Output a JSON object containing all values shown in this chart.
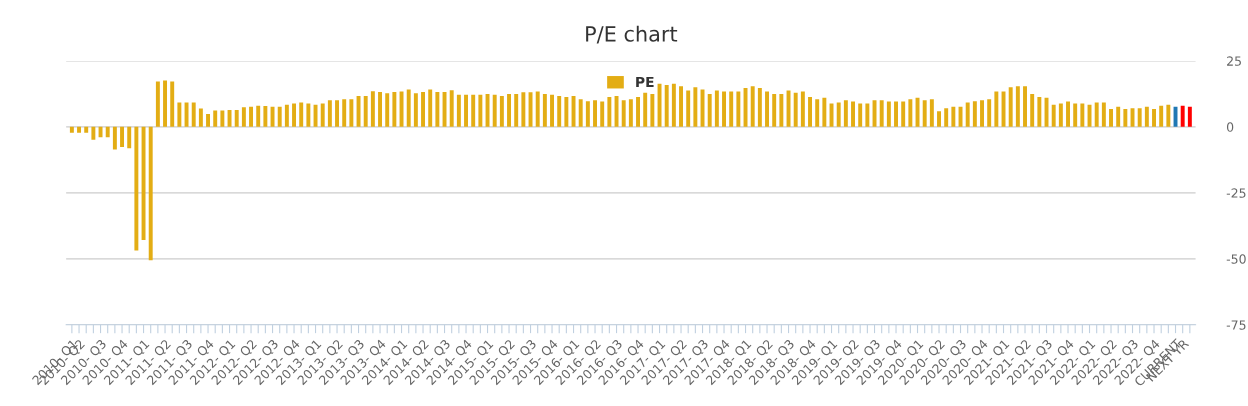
{
  "chart_data": {
    "type": "bar",
    "title": "P/E chart",
    "categories": [
      "2010- Q1",
      "2010- Q2",
      null,
      null,
      "2010- Q3",
      null,
      null,
      "2010- Q4",
      null,
      null,
      "2011- Q1",
      null,
      null,
      "2011- Q2",
      null,
      null,
      "2011- Q3",
      null,
      null,
      "2011- Q4",
      null,
      null,
      "2012- Q1",
      null,
      null,
      "2012- Q2",
      null,
      null,
      "2012- Q3",
      null,
      null,
      "2012- Q4",
      null,
      null,
      "2013- Q1",
      null,
      null,
      "2013- Q2",
      null,
      null,
      "2013- Q3",
      null,
      null,
      "2013- Q4",
      null,
      null,
      "2014- Q1",
      null,
      null,
      "2014- Q2",
      null,
      null,
      "2014- Q3",
      null,
      null,
      "2014- Q4",
      null,
      null,
      "2015- Q1",
      null,
      null,
      "2015- Q2",
      null,
      null,
      "2015- Q3",
      null,
      null,
      "2015- Q4",
      null,
      null,
      "2016- Q1",
      null,
      null,
      "2016- Q2",
      null,
      null,
      "2016- Q3",
      null,
      null,
      "2016- Q4",
      null,
      null,
      "2017- Q1",
      null,
      null,
      "2017- Q2",
      null,
      null,
      "2017- Q3",
      null,
      null,
      "2017- Q4",
      null,
      null,
      "2018- Q1",
      null,
      null,
      "2018- Q2",
      null,
      null,
      "2018- Q3",
      null,
      null,
      "2018- Q4",
      null,
      null,
      "2019- Q1",
      null,
      null,
      "2019- Q2",
      null,
      null,
      "2019- Q3",
      null,
      null,
      "2019- Q4",
      null,
      null,
      "2020- Q1",
      null,
      null,
      "2020- Q2",
      null,
      null,
      "2020- Q3",
      null,
      null,
      "2020- Q4",
      null,
      null,
      "2021- Q1",
      null,
      null,
      "2021- Q2",
      null,
      null,
      "2021- Q3",
      null,
      null,
      "2021- Q4",
      null,
      null,
      "2022- Q1",
      null,
      null,
      "2022- Q2",
      null,
      null,
      "2022- Q3",
      null,
      null,
      "2022- Q4",
      null,
      null,
      "CURRENT",
      "NEXT YR",
      null
    ],
    "series": [
      {
        "name": "PE",
        "color": "#e3ad14",
        "values": [
          -2.2,
          -2.2,
          -2.2,
          -4.9,
          -3.9,
          -3.9,
          -8.6,
          -7.6,
          -8.1,
          -46.8,
          -42.9,
          -50.5,
          17.2,
          17.6,
          17.2,
          9.2,
          9.2,
          9.2,
          7.0,
          4.9,
          6.2,
          6.2,
          6.4,
          6.4,
          7.4,
          7.6,
          8.0,
          7.9,
          7.6,
          7.6,
          8.4,
          8.9,
          9.2,
          8.9,
          8.4,
          8.9,
          10.1,
          10.1,
          10.5,
          10.5,
          11.7,
          11.7,
          13.5,
          13.2,
          12.7,
          13.2,
          13.4,
          14.2,
          12.7,
          13.2,
          14.2,
          13.2,
          13.2,
          13.9,
          12.2,
          12.2,
          12.2,
          12.2,
          12.5,
          12.2,
          11.7,
          12.5,
          12.5,
          13.1,
          13.1,
          13.4,
          12.5,
          12.2,
          11.7,
          11.3,
          11.7,
          10.5,
          9.7,
          10.1,
          9.6,
          11.3,
          11.7,
          10.1,
          10.5,
          11.3,
          12.9,
          12.5,
          16.3,
          15.9,
          16.3,
          15.4,
          13.8,
          15.0,
          14.2,
          12.5,
          13.8,
          13.4,
          13.4,
          13.4,
          14.7,
          15.4,
          14.7,
          13.4,
          12.5,
          12.5,
          13.8,
          12.9,
          13.4,
          11.3,
          10.5,
          11.0,
          8.9,
          9.2,
          10.1,
          9.6,
          8.9,
          8.9,
          10.1,
          10.1,
          9.6,
          9.6,
          9.6,
          10.5,
          11.0,
          10.1,
          10.5,
          5.9,
          7.1,
          7.6,
          7.6,
          9.2,
          9.7,
          10.1,
          10.5,
          13.4,
          13.4,
          15.0,
          15.4,
          15.4,
          12.5,
          11.3,
          11.0,
          8.4,
          8.9,
          9.6,
          8.9,
          8.9,
          8.4,
          9.2,
          9.2,
          6.8,
          7.6,
          6.8,
          7.1,
          7.1,
          7.6,
          6.8,
          8.0,
          8.4,
          7.6,
          8.0,
          7.6
        ],
        "colors": [
          "#e3ad14",
          "#e3ad14",
          "#e3ad14",
          "#e3ad14",
          "#e3ad14",
          "#e3ad14",
          "#e3ad14",
          "#e3ad14",
          "#e3ad14",
          "#e3ad14",
          "#e3ad14",
          "#e3ad14",
          "#e3ad14",
          "#e3ad14",
          "#e3ad14",
          "#e3ad14",
          "#e3ad14",
          "#e3ad14",
          "#e3ad14",
          "#e3ad14",
          "#e3ad14",
          "#e3ad14",
          "#e3ad14",
          "#e3ad14",
          "#e3ad14",
          "#e3ad14",
          "#e3ad14",
          "#e3ad14",
          "#e3ad14",
          "#e3ad14",
          "#e3ad14",
          "#e3ad14",
          "#e3ad14",
          "#e3ad14",
          "#e3ad14",
          "#e3ad14",
          "#e3ad14",
          "#e3ad14",
          "#e3ad14",
          "#e3ad14",
          "#e3ad14",
          "#e3ad14",
          "#e3ad14",
          "#e3ad14",
          "#e3ad14",
          "#e3ad14",
          "#e3ad14",
          "#e3ad14",
          "#e3ad14",
          "#e3ad14",
          "#e3ad14",
          "#e3ad14",
          "#e3ad14",
          "#e3ad14",
          "#e3ad14",
          "#e3ad14",
          "#e3ad14",
          "#e3ad14",
          "#e3ad14",
          "#e3ad14",
          "#e3ad14",
          "#e3ad14",
          "#e3ad14",
          "#e3ad14",
          "#e3ad14",
          "#e3ad14",
          "#e3ad14",
          "#e3ad14",
          "#e3ad14",
          "#e3ad14",
          "#e3ad14",
          "#e3ad14",
          "#e3ad14",
          "#e3ad14",
          "#e3ad14",
          "#e3ad14",
          "#e3ad14",
          "#e3ad14",
          "#e3ad14",
          "#e3ad14",
          "#e3ad14",
          "#e3ad14",
          "#e3ad14",
          "#e3ad14",
          "#e3ad14",
          "#e3ad14",
          "#e3ad14",
          "#e3ad14",
          "#e3ad14",
          "#e3ad14",
          "#e3ad14",
          "#e3ad14",
          "#e3ad14",
          "#e3ad14",
          "#e3ad14",
          "#e3ad14",
          "#e3ad14",
          "#e3ad14",
          "#e3ad14",
          "#e3ad14",
          "#e3ad14",
          "#e3ad14",
          "#e3ad14",
          "#e3ad14",
          "#e3ad14",
          "#e3ad14",
          "#e3ad14",
          "#e3ad14",
          "#e3ad14",
          "#e3ad14",
          "#e3ad14",
          "#e3ad14",
          "#e3ad14",
          "#e3ad14",
          "#e3ad14",
          "#e3ad14",
          "#e3ad14",
          "#e3ad14",
          "#e3ad14",
          "#e3ad14",
          "#e3ad14",
          "#e3ad14",
          "#e3ad14",
          "#e3ad14",
          "#e3ad14",
          "#e3ad14",
          "#e3ad14",
          "#e3ad14",
          "#e3ad14",
          "#e3ad14",
          "#e3ad14",
          "#e3ad14",
          "#e3ad14",
          "#e3ad14",
          "#e3ad14",
          "#e3ad14",
          "#e3ad14",
          "#e3ad14",
          "#e3ad14",
          "#e3ad14",
          "#e3ad14",
          "#e3ad14",
          "#e3ad14",
          "#e3ad14",
          "#e3ad14",
          "#e3ad14",
          "#e3ad14",
          "#e3ad14",
          "#e3ad14",
          "#e3ad14",
          "#e3ad14",
          "#e3ad14",
          "#e3ad14",
          "#e3ad14",
          "#1f78b4",
          "#ff0000",
          "#ff0000"
        ]
      }
    ],
    "ylim": [
      -75,
      25
    ],
    "yticks": [
      -75,
      -50,
      -25,
      0,
      25
    ],
    "grid": "y",
    "legend": "top"
  }
}
